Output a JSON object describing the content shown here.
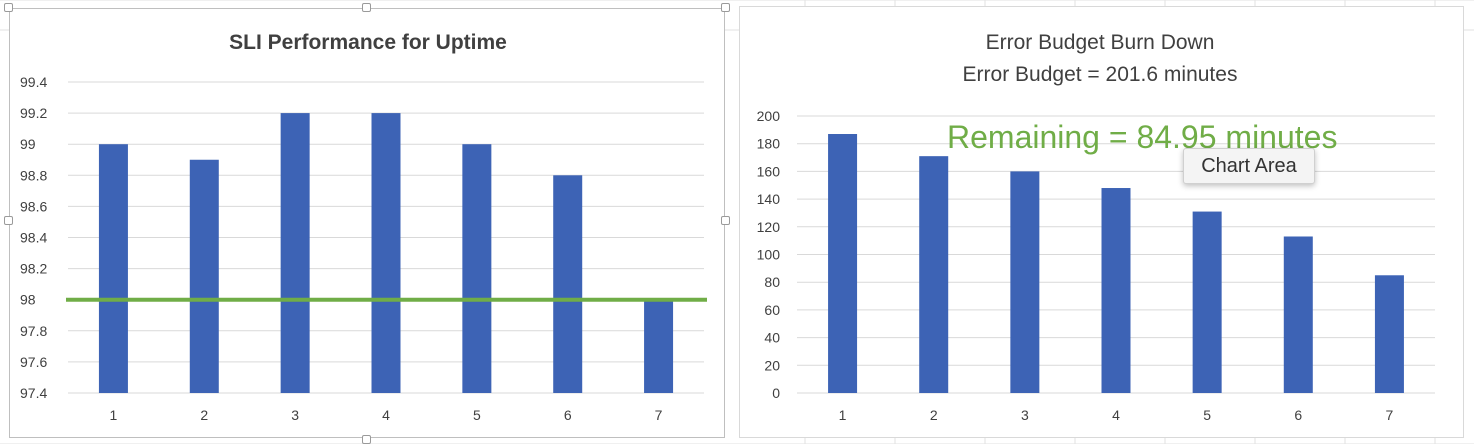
{
  "colors": {
    "bar": "#3d63b5",
    "target_line": "#70ad47",
    "annotation": "#70ad47",
    "gridline": "#d9d9d9",
    "sheet_grid": "#e2e2e2"
  },
  "tooltip": {
    "label": "Chart Area"
  },
  "chart_data": [
    {
      "type": "bar",
      "title": "SLI Performance for Uptime",
      "title_bold": true,
      "categories": [
        "1",
        "2",
        "3",
        "4",
        "5",
        "6",
        "7"
      ],
      "values": [
        99.0,
        98.9,
        99.2,
        99.2,
        99.0,
        98.8,
        98.0
      ],
      "ylim": [
        97.4,
        99.4
      ],
      "yticks": [
        "97.4",
        "97.6",
        "97.8",
        "98",
        "98.2",
        "98.4",
        "98.6",
        "98.8",
        "99",
        "99.2",
        "99.4"
      ],
      "target_line": 98,
      "grid": true,
      "legend": "none",
      "xlabel": "",
      "ylabel": ""
    },
    {
      "type": "bar",
      "title": "Error Budget Burn Down",
      "subtitle": "Error Budget = 201.6 minutes",
      "annotation": "Remaining = 84.95 minutes",
      "categories": [
        "1",
        "2",
        "3",
        "4",
        "5",
        "6",
        "7"
      ],
      "values": [
        187,
        171,
        160,
        148,
        131,
        113,
        85
      ],
      "ylim": [
        0,
        200
      ],
      "yticks": [
        "0",
        "20",
        "40",
        "60",
        "80",
        "100",
        "120",
        "140",
        "160",
        "180",
        "200"
      ],
      "grid": true,
      "legend": "none",
      "xlabel": "",
      "ylabel": ""
    }
  ]
}
